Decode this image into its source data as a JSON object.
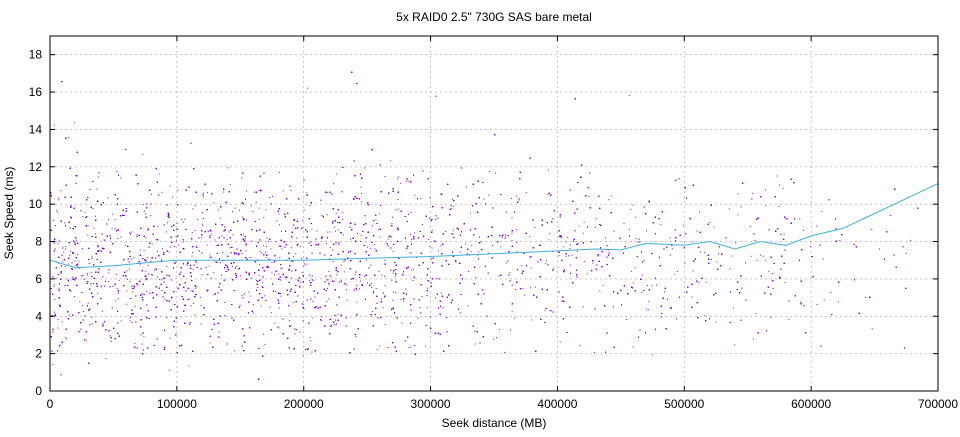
{
  "chart_data": {
    "type": "scatter",
    "title": "5x RAID0 2.5\" 730G SAS bare metal",
    "xlabel": "Seek distance (MB)",
    "ylabel": "Seek Speed (ms)",
    "xlim": [
      0,
      700000
    ],
    "ylim": [
      0,
      19
    ],
    "x_ticks": [
      0,
      100000,
      200000,
      300000,
      400000,
      500000,
      600000,
      700000
    ],
    "x_tick_labels": [
      "0",
      "100000",
      "200000",
      "300000",
      "400000",
      "500000",
      "600000",
      "700000"
    ],
    "y_ticks": [
      0,
      2,
      4,
      6,
      8,
      10,
      12,
      14,
      16,
      18
    ],
    "y_tick_labels": [
      "0",
      "2",
      "4",
      "6",
      "8",
      "10",
      "12",
      "14",
      "16",
      "18"
    ],
    "grid": true,
    "legend": "none",
    "series": [
      {
        "kind": "points",
        "color": "#8000c0",
        "approx_point_count": 14000,
        "x_range": [
          0,
          690000
        ],
        "y_range": [
          0.5,
          17.5
        ],
        "density_by_x": [
          [
            0,
            1.0
          ],
          [
            50000,
            0.95
          ],
          [
            100000,
            1.0
          ],
          [
            150000,
            0.9
          ],
          [
            200000,
            0.85
          ],
          [
            250000,
            0.7
          ],
          [
            300000,
            0.6
          ],
          [
            350000,
            0.5
          ],
          [
            400000,
            0.42
          ],
          [
            450000,
            0.35
          ],
          [
            500000,
            0.3
          ],
          [
            550000,
            0.25
          ],
          [
            600000,
            0.15
          ],
          [
            650000,
            0.06
          ],
          [
            700000,
            0.04
          ]
        ]
      },
      {
        "kind": "trend_line",
        "color": "#40b0e0",
        "x": [
          0,
          20000,
          50000,
          80000,
          100000,
          150000,
          200000,
          250000,
          300000,
          350000,
          400000,
          430000,
          450000,
          470000,
          500000,
          520000,
          540000,
          560000,
          580000,
          600000,
          625000,
          650000,
          700000
        ],
        "y": [
          7.0,
          6.6,
          6.7,
          6.9,
          7.0,
          7.0,
          7.0,
          7.1,
          7.2,
          7.35,
          7.5,
          7.6,
          7.55,
          7.9,
          7.8,
          8.0,
          7.6,
          8.0,
          7.8,
          8.3,
          8.7,
          9.5,
          11.1
        ]
      }
    ]
  }
}
